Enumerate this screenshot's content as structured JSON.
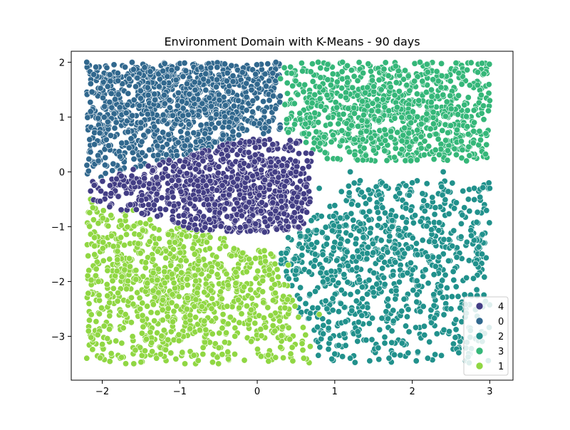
{
  "chart_data": {
    "type": "scatter",
    "title": "Environment Domain with K-Means - 90 days",
    "xlabel": "",
    "ylabel": "",
    "xlim": [
      -2.4,
      3.3
    ],
    "ylim": [
      -3.8,
      2.2
    ],
    "xticks": [
      -2,
      -1,
      0,
      1,
      2,
      3
    ],
    "yticks": [
      -3,
      -2,
      -1,
      0,
      1,
      2
    ],
    "xtick_labels": [
      "−2",
      "−1",
      "0",
      "1",
      "2",
      "3"
    ],
    "ytick_labels": [
      "−3",
      "−2",
      "−1",
      "0",
      "1",
      "2"
    ],
    "grid": false,
    "legend_position": "lower-right",
    "legend_order": [
      "4",
      "0",
      "2",
      "3",
      "1"
    ],
    "series": [
      {
        "name": "4",
        "color": "#433e85",
        "centroid": [
          -0.2,
          -0.3
        ],
        "region": "center band: x from -2.2 to 0.7, y from -1.1 to 0.6",
        "points": [
          [
            -2.15,
            -0.35
          ],
          [
            -1.9,
            -0.25
          ],
          [
            -1.6,
            -0.2
          ],
          [
            -1.3,
            -0.1
          ],
          [
            -1.0,
            0.0
          ],
          [
            -0.7,
            0.2
          ],
          [
            -0.4,
            0.4
          ],
          [
            -0.1,
            0.55
          ],
          [
            0.2,
            0.5
          ],
          [
            0.5,
            0.0
          ],
          [
            0.6,
            -0.4
          ],
          [
            0.4,
            -1.0
          ],
          [
            -0.2,
            -0.8
          ],
          [
            -0.8,
            -0.5
          ]
        ]
      },
      {
        "name": "0",
        "color": "#31688e",
        "centroid": [
          -0.9,
          1.2
        ],
        "region": "upper-left: x from -2.2 to 0.3, y from -0.2 to 2.0",
        "points": [
          [
            -2.2,
            2.0
          ],
          [
            -2.15,
            1.1
          ],
          [
            -2.1,
            0.5
          ],
          [
            -2.05,
            0.2
          ],
          [
            -1.8,
            1.8
          ],
          [
            -1.5,
            0.9
          ],
          [
            -1.2,
            1.4
          ],
          [
            -0.9,
            0.7
          ],
          [
            -0.6,
            1.9
          ],
          [
            -0.3,
            1.2
          ],
          [
            0.0,
            1.6
          ],
          [
            0.2,
            1.8
          ],
          [
            0.1,
            0.8
          ]
        ]
      },
      {
        "name": "2",
        "color": "#21918c",
        "centroid": [
          1.6,
          -1.4
        ],
        "region": "lower-right: x from 0.3 to 3.0, y from -3.5 to 0.1",
        "points": [
          [
            0.8,
            -0.3
          ],
          [
            1.2,
            0.0
          ],
          [
            1.6,
            -0.5
          ],
          [
            2.0,
            -0.2
          ],
          [
            2.4,
            0.0
          ],
          [
            2.8,
            -0.3
          ],
          [
            3.0,
            -0.3
          ],
          [
            2.9,
            -1.5
          ],
          [
            2.5,
            -2.5
          ],
          [
            2.2,
            -3.4
          ],
          [
            1.7,
            -3.4
          ],
          [
            1.2,
            -3.4
          ],
          [
            0.9,
            -2.5
          ],
          [
            0.5,
            -1.8
          ],
          [
            0.4,
            -1.2
          ],
          [
            1.5,
            -2.2
          ],
          [
            2.6,
            -3.3
          ]
        ]
      },
      {
        "name": "3",
        "color": "#35b779",
        "centroid": [
          1.6,
          1.1
        ],
        "region": "upper-right: x from 0.2 to 3.0, y from 0.2 to 2.0",
        "points": [
          [
            0.3,
            1.7
          ],
          [
            0.35,
            1.9
          ],
          [
            0.6,
            0.7
          ],
          [
            0.9,
            1.4
          ],
          [
            1.1,
            2.0
          ],
          [
            1.4,
            0.3
          ],
          [
            1.6,
            1.5
          ],
          [
            1.9,
            0.8
          ],
          [
            2.1,
            2.0
          ],
          [
            2.3,
            0.4
          ],
          [
            2.6,
            1.8
          ],
          [
            2.8,
            0.9
          ],
          [
            2.9,
            1.98
          ],
          [
            3.0,
            1.3
          ],
          [
            2.95,
            0.7
          ],
          [
            2.7,
            0.2
          ]
        ]
      },
      {
        "name": "1",
        "color": "#90d743",
        "centroid": [
          -1.0,
          -2.0
        ],
        "region": "lower-left: x from -2.2 to 0.8, y from -3.5 to -0.5",
        "points": [
          [
            -2.15,
            -0.5
          ],
          [
            -2.1,
            -1.2
          ],
          [
            -2.05,
            -2.0
          ],
          [
            -2.2,
            -3.4
          ],
          [
            -1.7,
            -2.6
          ],
          [
            -1.3,
            -3.4
          ],
          [
            -0.9,
            -2.3
          ],
          [
            -0.5,
            -3.5
          ],
          [
            -0.1,
            -2.7
          ],
          [
            0.3,
            -3.2
          ],
          [
            0.6,
            -3.4
          ],
          [
            0.8,
            -2.6
          ],
          [
            0.4,
            -1.7
          ],
          [
            -0.3,
            -1.4
          ],
          [
            -1.0,
            -1.0
          ],
          [
            -1.6,
            -0.7
          ]
        ]
      }
    ]
  }
}
